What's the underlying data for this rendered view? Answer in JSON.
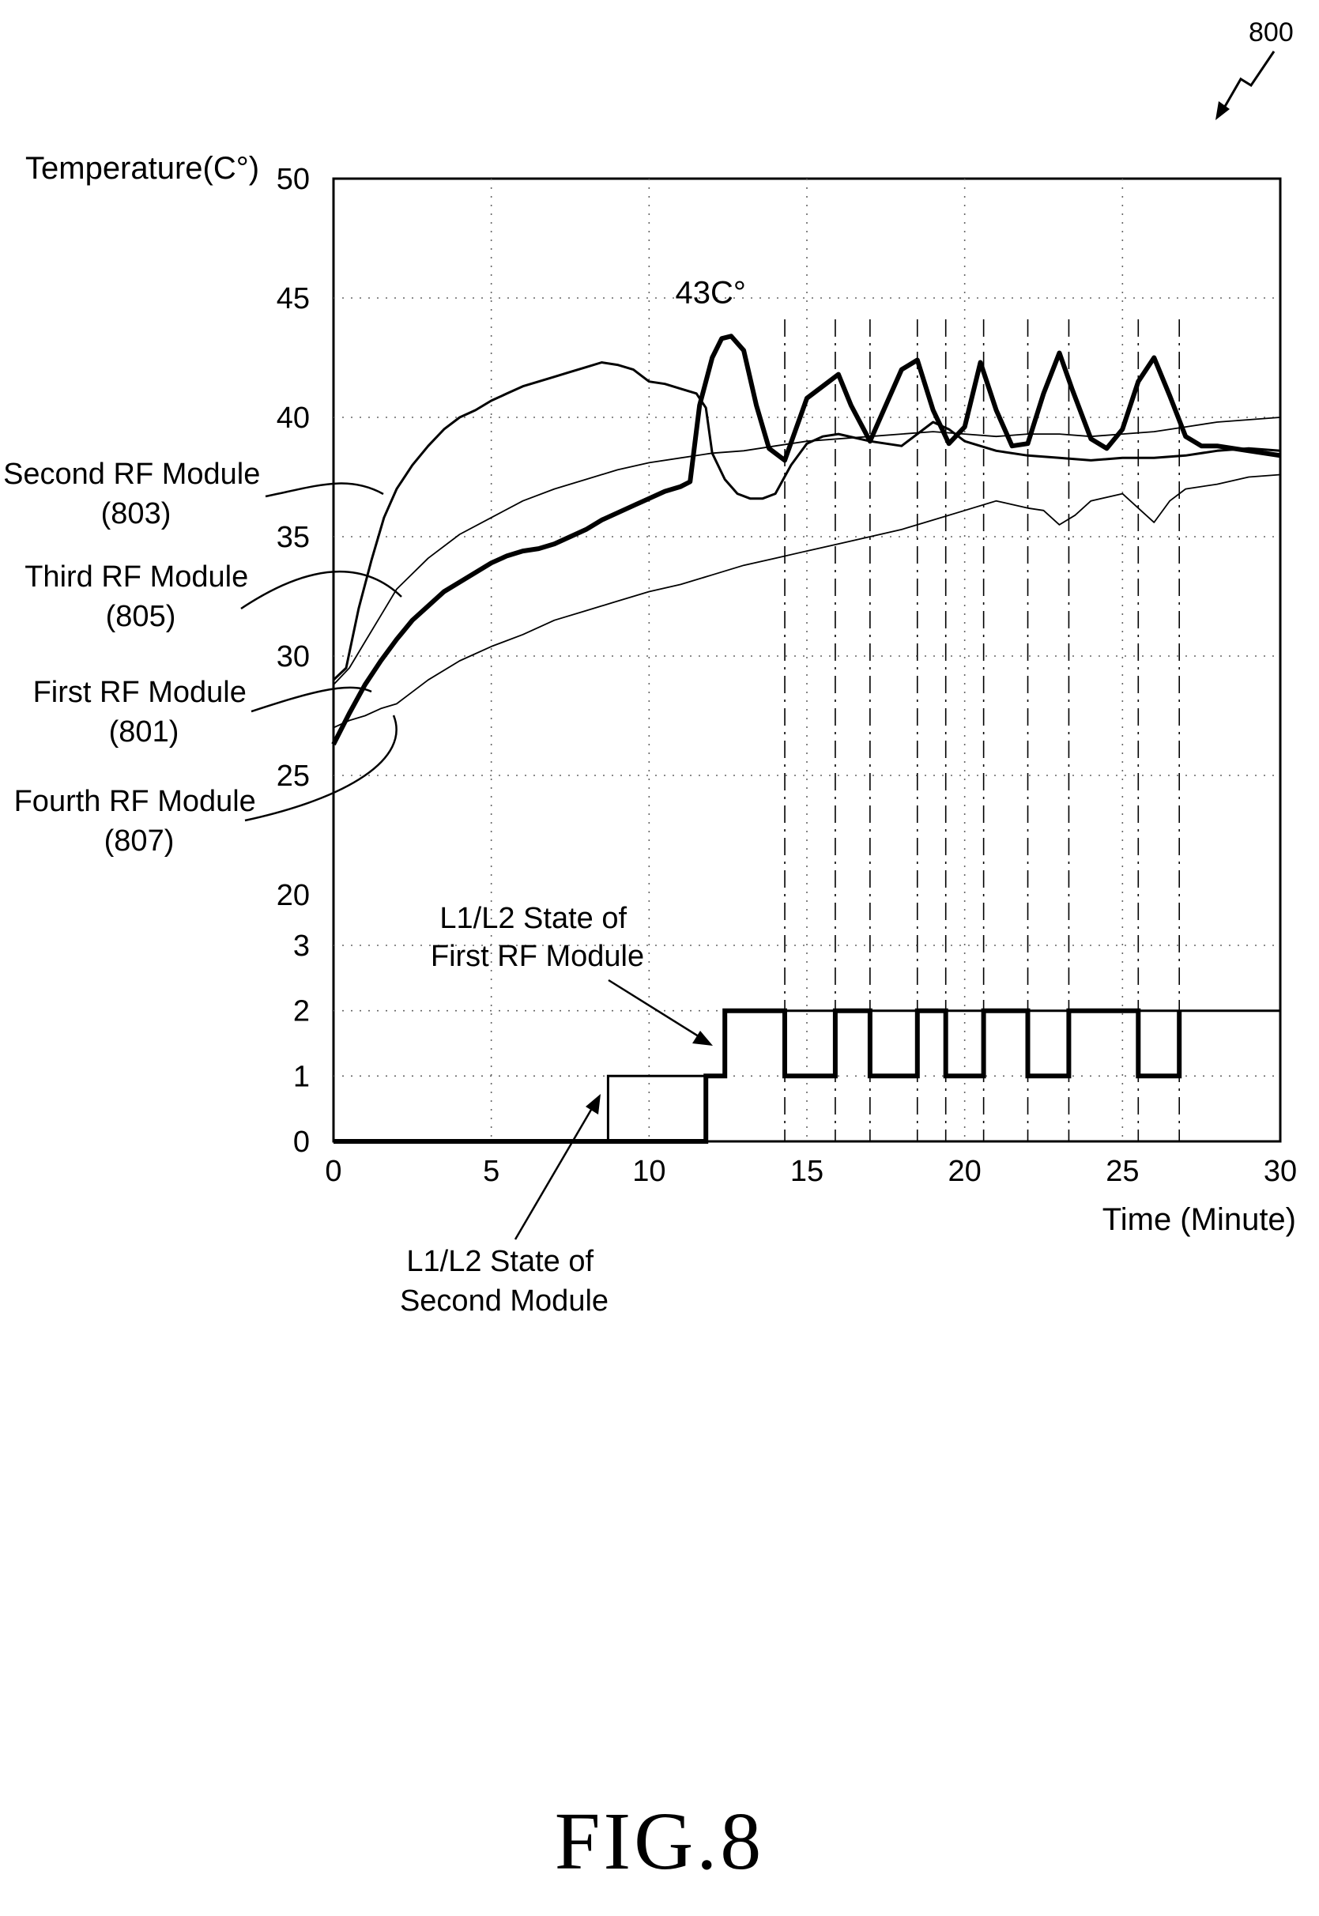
{
  "figure_ref": "800",
  "caption": "FIG.8",
  "chart_data": {
    "type": "line",
    "xlabel": "Time (Minute)",
    "ylabel": "Temperature(C°)",
    "xlim": [
      0,
      30
    ],
    "x_ticks": [
      "0",
      "5",
      "10",
      "15",
      "20",
      "25",
      "30"
    ],
    "temperature_ylim": [
      20,
      50
    ],
    "temperature_ticks": [
      "20",
      "25",
      "30",
      "35",
      "40",
      "45",
      "50"
    ],
    "state_ylim": [
      0,
      3
    ],
    "state_ticks": [
      "0",
      "1",
      "2",
      "3"
    ],
    "grid": true,
    "peak_annotation": {
      "text": "43C°",
      "x": 12.2,
      "y": 43.4
    },
    "series": [
      {
        "name": "Second RF Module (803)",
        "label_lines": [
          "Second RF Module",
          "(803)"
        ],
        "stroke": "#000000",
        "weight": "thin",
        "x": [
          0,
          0.4,
          0.8,
          1.2,
          1.6,
          2,
          2.5,
          3,
          3.5,
          4,
          4.5,
          5,
          5.5,
          6,
          6.5,
          7,
          7.5,
          8,
          8.5,
          9,
          9.5,
          10,
          10.5,
          11,
          11.5,
          11.8,
          12,
          12.4,
          12.8,
          13.2,
          13.6,
          14,
          14.5,
          15,
          15.5,
          16,
          17,
          18,
          19,
          19.5,
          20,
          21,
          22,
          23,
          24,
          25,
          26,
          27,
          28,
          29,
          30
        ],
        "y": [
          29,
          29.5,
          32,
          34,
          35.8,
          37,
          38,
          38.8,
          39.5,
          40,
          40.3,
          40.7,
          41,
          41.3,
          41.5,
          41.7,
          41.9,
          42.1,
          42.3,
          42.2,
          42,
          41.5,
          41.4,
          41.2,
          41,
          40.4,
          38.5,
          37.4,
          36.8,
          36.6,
          36.6,
          36.8,
          38,
          38.9,
          39.2,
          39.3,
          39,
          38.8,
          39.8,
          39.5,
          39,
          38.6,
          38.4,
          38.3,
          38.2,
          38.3,
          38.3,
          38.4,
          38.6,
          38.7,
          38.6
        ]
      },
      {
        "name": "Third RF Module (805)",
        "label_lines": [
          "Third RF Module",
          "(805)"
        ],
        "stroke": "#000000",
        "weight": "hairline",
        "x": [
          0,
          0.5,
          1,
          1.5,
          2,
          3,
          4,
          5,
          6,
          7,
          8,
          9,
          10,
          11,
          12,
          13,
          14,
          15,
          16,
          17,
          18,
          19,
          20,
          21,
          22,
          23,
          24,
          25,
          26,
          27,
          28,
          29,
          30
        ],
        "y": [
          28.8,
          29.5,
          30.6,
          31.7,
          32.8,
          34.1,
          35.1,
          35.8,
          36.5,
          37,
          37.4,
          37.8,
          38.1,
          38.3,
          38.5,
          38.6,
          38.8,
          39,
          39.1,
          39.2,
          39.3,
          39.4,
          39.3,
          39.2,
          39.3,
          39.3,
          39.2,
          39.3,
          39.4,
          39.6,
          39.8,
          39.9,
          40
        ]
      },
      {
        "name": "First RF Module (801)",
        "label_lines": [
          "First RF Module",
          "(801)"
        ],
        "stroke": "#000000",
        "weight": "bold",
        "x": [
          0,
          0.5,
          1,
          1.5,
          2,
          2.5,
          3,
          3.5,
          4,
          4.5,
          5,
          5.5,
          6,
          6.5,
          7,
          7.5,
          8,
          8.5,
          9,
          9.5,
          10,
          10.5,
          11,
          11.3,
          11.6,
          12,
          12.3,
          12.6,
          13,
          13.4,
          13.8,
          14.3,
          15,
          15.5,
          16,
          16.4,
          17,
          17.6,
          18,
          18.5,
          19,
          19.5,
          20,
          20.5,
          21,
          21.5,
          22,
          22.5,
          23,
          23.4,
          24,
          24.5,
          25,
          25.5,
          26,
          26.5,
          27,
          27.5,
          28,
          29,
          30
        ],
        "y": [
          26.3,
          27.6,
          28.8,
          29.8,
          30.7,
          31.5,
          32.1,
          32.7,
          33.1,
          33.5,
          33.9,
          34.2,
          34.4,
          34.5,
          34.7,
          35,
          35.3,
          35.7,
          36,
          36.3,
          36.6,
          36.9,
          37.1,
          37.3,
          40.5,
          42.5,
          43.3,
          43.4,
          42.8,
          40.5,
          38.7,
          38.2,
          40.8,
          41.3,
          41.8,
          40.5,
          39,
          40.8,
          42,
          42.4,
          40.3,
          38.9,
          39.6,
          42.3,
          40.3,
          38.8,
          38.9,
          41,
          42.7,
          41.2,
          39.1,
          38.7,
          39.5,
          41.5,
          42.5,
          40.9,
          39.2,
          38.8,
          38.8,
          38.6,
          38.4
        ]
      },
      {
        "name": "Fourth RF Module (807)",
        "label_lines": [
          "Fourth RF Module",
          "(807)"
        ],
        "stroke": "#000000",
        "weight": "hairline",
        "x": [
          0,
          0.5,
          1,
          1.5,
          2,
          2.5,
          3,
          4,
          5,
          6,
          7,
          8,
          9,
          10,
          11,
          12,
          13,
          14,
          15,
          16,
          17,
          18,
          19,
          20,
          21,
          22,
          22.5,
          23,
          23.5,
          24,
          25,
          25.5,
          26,
          26.5,
          27,
          28,
          29,
          30
        ],
        "y": [
          27,
          27.3,
          27.5,
          27.8,
          28,
          28.5,
          29,
          29.8,
          30.4,
          30.9,
          31.5,
          31.9,
          32.3,
          32.7,
          33,
          33.4,
          33.8,
          34.1,
          34.4,
          34.7,
          35,
          35.3,
          35.7,
          36.1,
          36.5,
          36.2,
          36.1,
          35.5,
          35.9,
          36.5,
          36.8,
          36.2,
          35.6,
          36.5,
          37,
          37.2,
          37.5,
          37.6
        ]
      }
    ],
    "state_series": [
      {
        "name": "L1/L2 State of First RF Module",
        "label_lines": [
          "L1/L2 State of",
          "First RF Module"
        ],
        "weight": "bold",
        "x": [
          0,
          11.8,
          11.8,
          12.4,
          12.4,
          14.3,
          14.3,
          15.9,
          15.9,
          17,
          17,
          18.5,
          18.5,
          19.4,
          19.4,
          20.6,
          20.6,
          22,
          22,
          23.3,
          23.3,
          25.5,
          25.5,
          26.8,
          26.8
        ],
        "y": [
          0,
          0,
          1,
          1,
          2,
          2,
          1,
          1,
          2,
          2,
          1,
          1,
          2,
          2,
          1,
          1,
          2,
          2,
          1,
          1,
          2,
          2,
          1,
          1,
          2
        ]
      },
      {
        "name": "L1/L2 State of Second Module",
        "label_lines": [
          "L1/L2 State of",
          "Second Module"
        ],
        "weight": "thin",
        "x": [
          0,
          8.7,
          8.7,
          12.4,
          12.4,
          30
        ],
        "y": [
          0,
          0,
          1,
          1,
          2,
          2
        ]
      }
    ],
    "event_lines_x": [
      14.3,
      15.9,
      17,
      18.5,
      19.4,
      20.6,
      22,
      23.3,
      25.5,
      26.8
    ]
  }
}
